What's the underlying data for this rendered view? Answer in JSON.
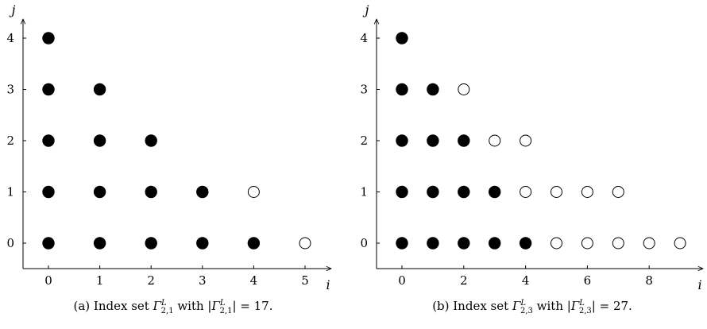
{
  "chart_data": [
    {
      "type": "scatter",
      "id": "a",
      "xlabel": "i",
      "ylabel": "j",
      "xticks": [
        0,
        1,
        2,
        3,
        4,
        5
      ],
      "yticks": [
        0,
        1,
        2,
        3,
        4
      ],
      "xlim": [
        -0.5,
        5.5
      ],
      "ylim": [
        -0.55,
        4.55
      ],
      "series": [
        {
          "marker": "filled",
          "points": [
            [
              0,
              0
            ],
            [
              1,
              0
            ],
            [
              2,
              0
            ],
            [
              3,
              0
            ],
            [
              4,
              0
            ],
            [
              0,
              1
            ],
            [
              1,
              1
            ],
            [
              2,
              1
            ],
            [
              3,
              1
            ],
            [
              0,
              2
            ],
            [
              1,
              2
            ],
            [
              2,
              2
            ],
            [
              0,
              3
            ],
            [
              1,
              3
            ],
            [
              0,
              4
            ]
          ]
        },
        {
          "marker": "hollow",
          "points": [
            [
              5,
              0
            ],
            [
              4,
              1
            ]
          ]
        }
      ],
      "caption": {
        "label": "(a) Index set ",
        "set": "Γ",
        "sup": "L",
        "sub": "2,1",
        "mid": " with |",
        "end": "| = 17."
      }
    },
    {
      "type": "scatter",
      "id": "b",
      "xlabel": "i",
      "ylabel": "j",
      "xticks": [
        0,
        2,
        4,
        6,
        8
      ],
      "yticks": [
        0,
        1,
        2,
        3,
        4
      ],
      "xlim": [
        -0.5,
        9.55
      ],
      "ylim": [
        -0.55,
        4.55
      ],
      "series": [
        {
          "marker": "filled",
          "points": [
            [
              0,
              0
            ],
            [
              1,
              0
            ],
            [
              2,
              0
            ],
            [
              3,
              0
            ],
            [
              4,
              0
            ],
            [
              0,
              1
            ],
            [
              1,
              1
            ],
            [
              2,
              1
            ],
            [
              3,
              1
            ],
            [
              0,
              2
            ],
            [
              1,
              2
            ],
            [
              2,
              2
            ],
            [
              0,
              3
            ],
            [
              1,
              3
            ],
            [
              0,
              4
            ]
          ]
        },
        {
          "marker": "hollow",
          "points": [
            [
              5,
              0
            ],
            [
              6,
              0
            ],
            [
              7,
              0
            ],
            [
              8,
              0
            ],
            [
              9,
              0
            ],
            [
              4,
              1
            ],
            [
              5,
              1
            ],
            [
              6,
              1
            ],
            [
              7,
              1
            ],
            [
              3,
              2
            ],
            [
              4,
              2
            ],
            [
              2,
              3
            ]
          ]
        }
      ],
      "caption": {
        "label": "(b) Index set ",
        "set": "Γ",
        "sup": "L",
        "sub": "2,3",
        "mid": " with |",
        "end": "| = 27."
      }
    }
  ]
}
